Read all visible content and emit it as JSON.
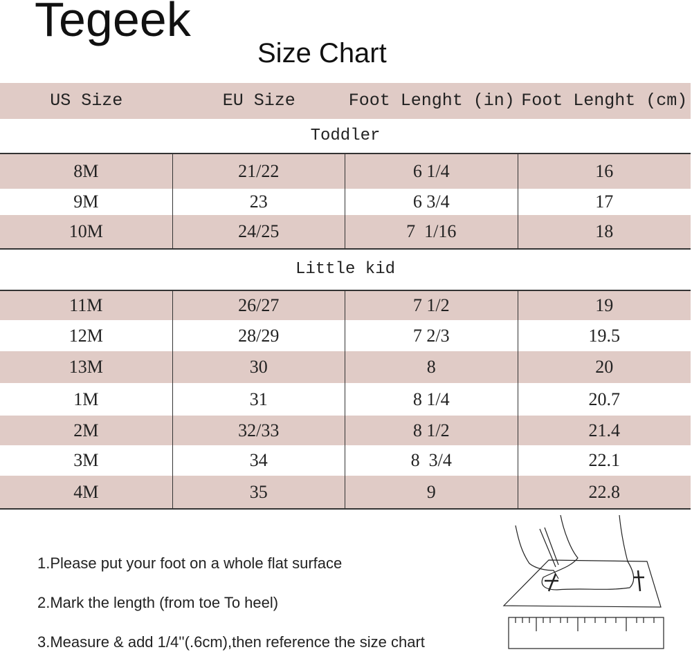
{
  "brand": "Tegeek",
  "title": "Size Chart",
  "headers": [
    "US Size",
    "EU Size",
    "Foot Lenght (in)",
    "Foot Lenght (cm)"
  ],
  "groups": [
    {
      "label": "Toddler",
      "rows": [
        [
          "8M",
          "21/22",
          "6 1/4",
          "16"
        ],
        [
          "9M",
          "23",
          "6 3/4",
          "17"
        ],
        [
          "10M",
          "24/25",
          "7  1/16",
          "18"
        ]
      ]
    },
    {
      "label": "Little kid",
      "rows": [
        [
          "11M",
          "26/27",
          "7 1/2",
          "19"
        ],
        [
          "12M",
          "28/29",
          "7 2/3",
          "19.5"
        ],
        [
          "13M",
          "30",
          "8",
          "20"
        ],
        [
          "1M",
          "31",
          "8 1/4",
          "20.7"
        ],
        [
          "2M",
          "32/33",
          "8 1/2",
          "21.4"
        ],
        [
          "3M",
          "34",
          "8  3/4",
          "22.1"
        ],
        [
          "4M",
          "35",
          "9",
          "22.8"
        ]
      ]
    }
  ],
  "instructions": [
    "1.Please put your foot on a whole flat surface",
    "2.Mark the length (from toe To heel)",
    "3.Measure & add 1/4''(.6cm),then reference the size chart"
  ],
  "colors": {
    "row_highlight": "#e0cbc6"
  },
  "illustration": "foot-measuring-with-ruler"
}
